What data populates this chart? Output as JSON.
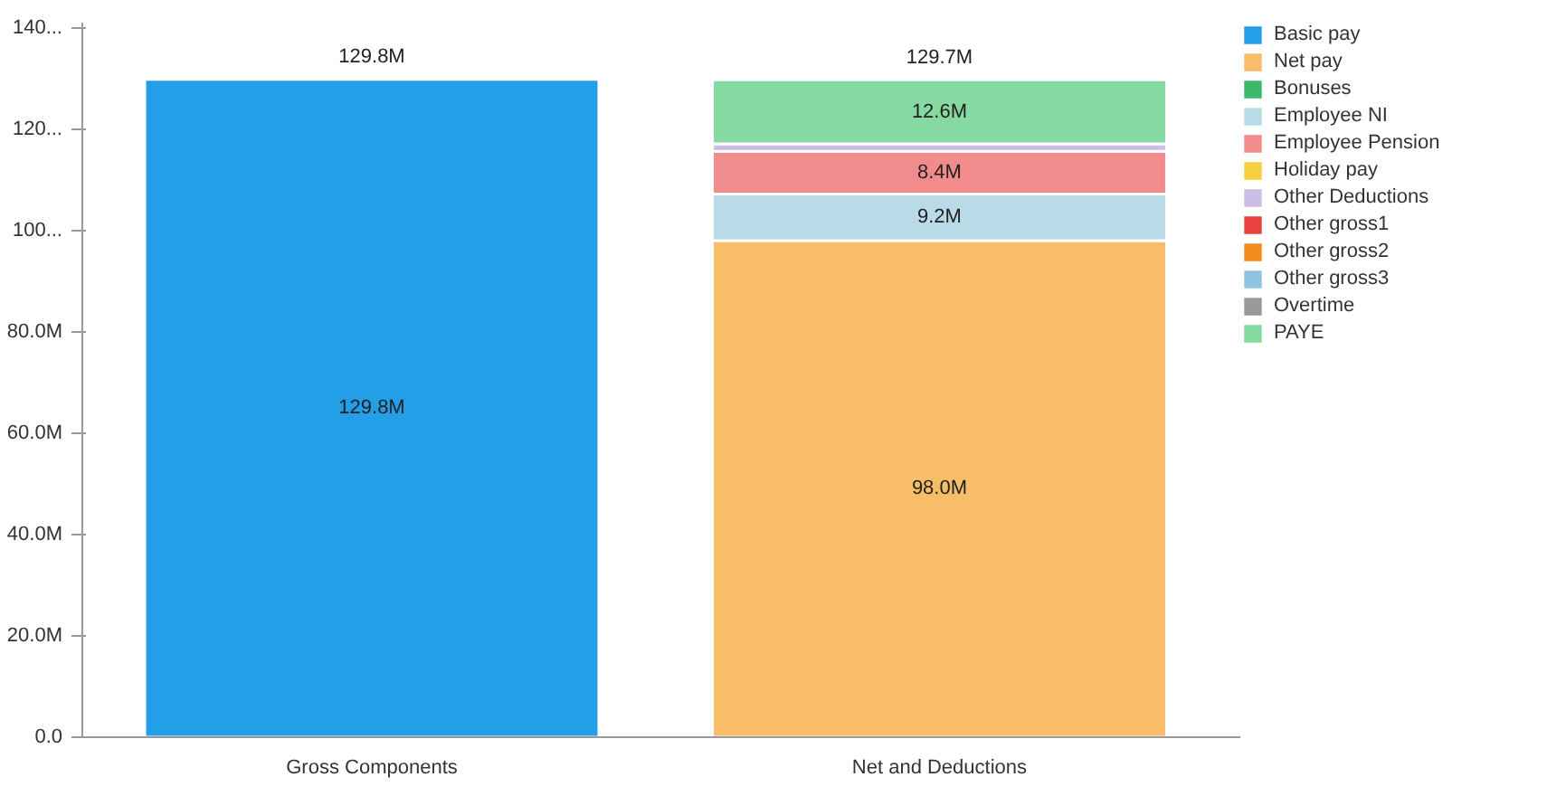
{
  "chart_data": {
    "type": "bar",
    "stacked": true,
    "categories": [
      "Gross Components",
      "Net and Deductions"
    ],
    "series": [
      {
        "name": "Basic pay",
        "color": "#229fe6",
        "values": [
          129.8,
          null
        ],
        "value_labels": [
          "129.8M",
          null
        ]
      },
      {
        "name": "Net pay",
        "color": "#f8bd68",
        "values": [
          null,
          98.0
        ],
        "value_labels": [
          null,
          "98.0M"
        ]
      },
      {
        "name": "Bonuses",
        "color": "#3cb86a",
        "values": [
          null,
          null
        ]
      },
      {
        "name": "Employee NI",
        "color": "#b9dbe8",
        "values": [
          null,
          9.2
        ],
        "value_labels": [
          null,
          "9.2M"
        ]
      },
      {
        "name": "Employee Pension",
        "color": "#f28b8b",
        "values": [
          null,
          8.4
        ],
        "value_labels": [
          null,
          "8.4M"
        ]
      },
      {
        "name": "Holiday pay",
        "color": "#f5d03c",
        "values": [
          null,
          null
        ]
      },
      {
        "name": "Other Deductions",
        "color": "#cbbde6",
        "values": [
          null,
          1.5
        ]
      },
      {
        "name": "Other gross1",
        "color": "#e8423f",
        "values": [
          null,
          null
        ]
      },
      {
        "name": "Other gross2",
        "color": "#f28d1e",
        "values": [
          null,
          null
        ]
      },
      {
        "name": "Other gross3",
        "color": "#8fc4e0",
        "values": [
          null,
          null
        ]
      },
      {
        "name": "Overtime",
        "color": "#999999",
        "values": [
          null,
          null
        ]
      },
      {
        "name": "PAYE",
        "color": "#86d9a0",
        "values": [
          null,
          12.6
        ],
        "value_labels": [
          null,
          "12.6M"
        ]
      }
    ],
    "totals": [
      "129.8M",
      "129.7M"
    ],
    "ylim": [
      0,
      141
    ],
    "yticks": [
      {
        "value": 0,
        "label": "0.0"
      },
      {
        "value": 20,
        "label": "20.0M"
      },
      {
        "value": 40,
        "label": "40.0M"
      },
      {
        "value": 60,
        "label": "60.0M"
      },
      {
        "value": 80,
        "label": "80.0M"
      },
      {
        "value": 100,
        "label": "100..."
      },
      {
        "value": 120,
        "label": "120..."
      },
      {
        "value": 140,
        "label": "140..."
      }
    ],
    "grid": false,
    "legend": "right"
  }
}
